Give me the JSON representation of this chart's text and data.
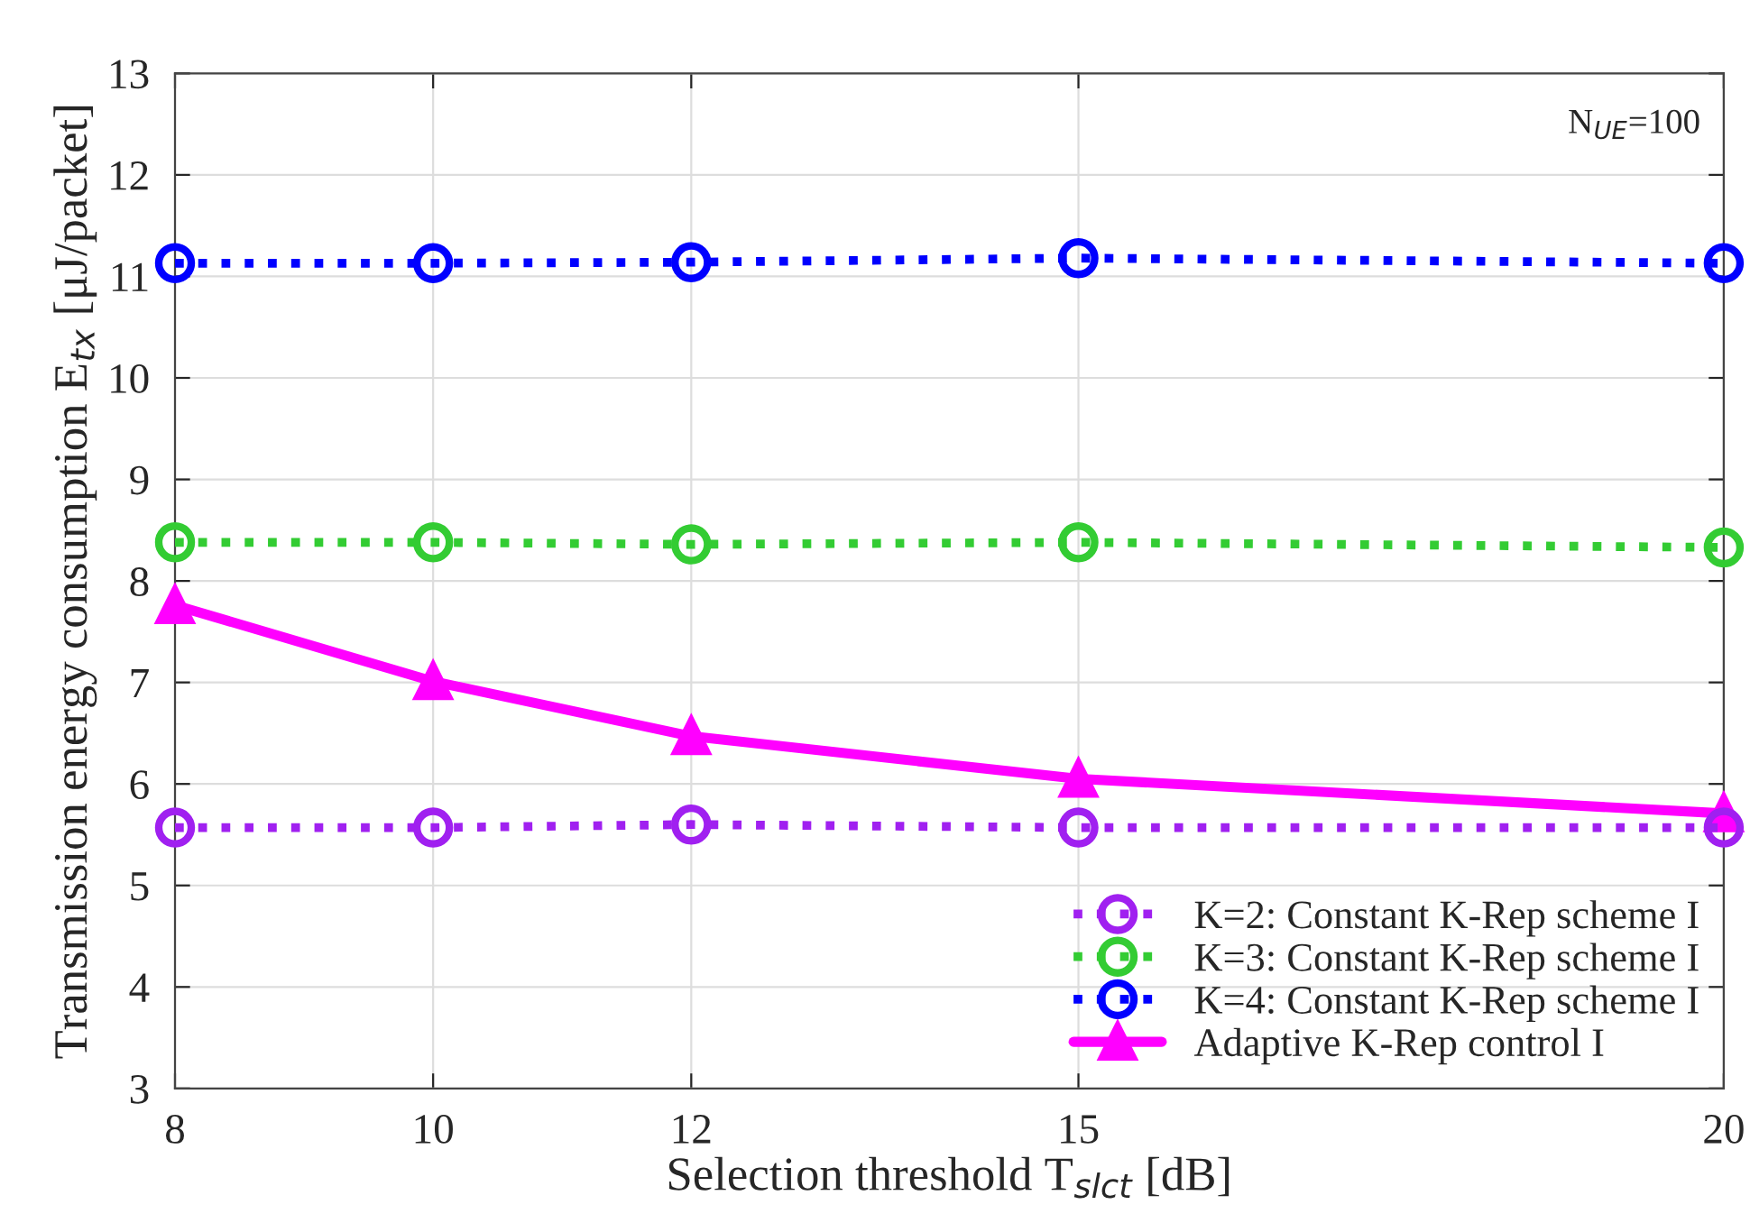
{
  "chart_data": {
    "type": "line",
    "xlabel": "Selection threshold T$_{slct}$ [dB]",
    "ylabel": "Transmission energy consumption E$_{tx}$ [μJ/packet]",
    "annotations": [
      "N$_{UE}$=100"
    ],
    "x": [
      8,
      10,
      12,
      15,
      20
    ],
    "series": [
      {
        "name": "K=2: Constant K-Rep scheme I",
        "color": "#a020f0",
        "values": [
          5.57,
          5.57,
          5.6,
          5.57,
          5.57
        ],
        "marker": "circle",
        "line_style": "dotted"
      },
      {
        "name": "K=3: Constant K-Rep scheme I",
        "color": "#33cc33",
        "values": [
          8.38,
          8.38,
          8.36,
          8.38,
          8.33
        ],
        "marker": "circle",
        "line_style": "dotted"
      },
      {
        "name": "K=4: Constant K-Rep scheme I",
        "color": "#0000ff",
        "values": [
          11.13,
          11.13,
          11.14,
          11.18,
          11.13
        ],
        "marker": "circle",
        "line_style": "dotted"
      },
      {
        "name": "Adaptive K-Rep control I",
        "color": "#ff00ff",
        "values": [
          7.76,
          7.01,
          6.47,
          6.05,
          5.71
        ],
        "marker": "triangle",
        "line_style": "solid"
      }
    ],
    "xlim": [
      8,
      20
    ],
    "xticks": [
      8,
      10,
      12,
      15,
      20
    ],
    "ylim": [
      3,
      13
    ],
    "yticks": [
      3,
      4,
      5,
      6,
      7,
      8,
      9,
      10,
      11,
      12,
      13
    ],
    "grid": true,
    "legend": "bottom right"
  }
}
